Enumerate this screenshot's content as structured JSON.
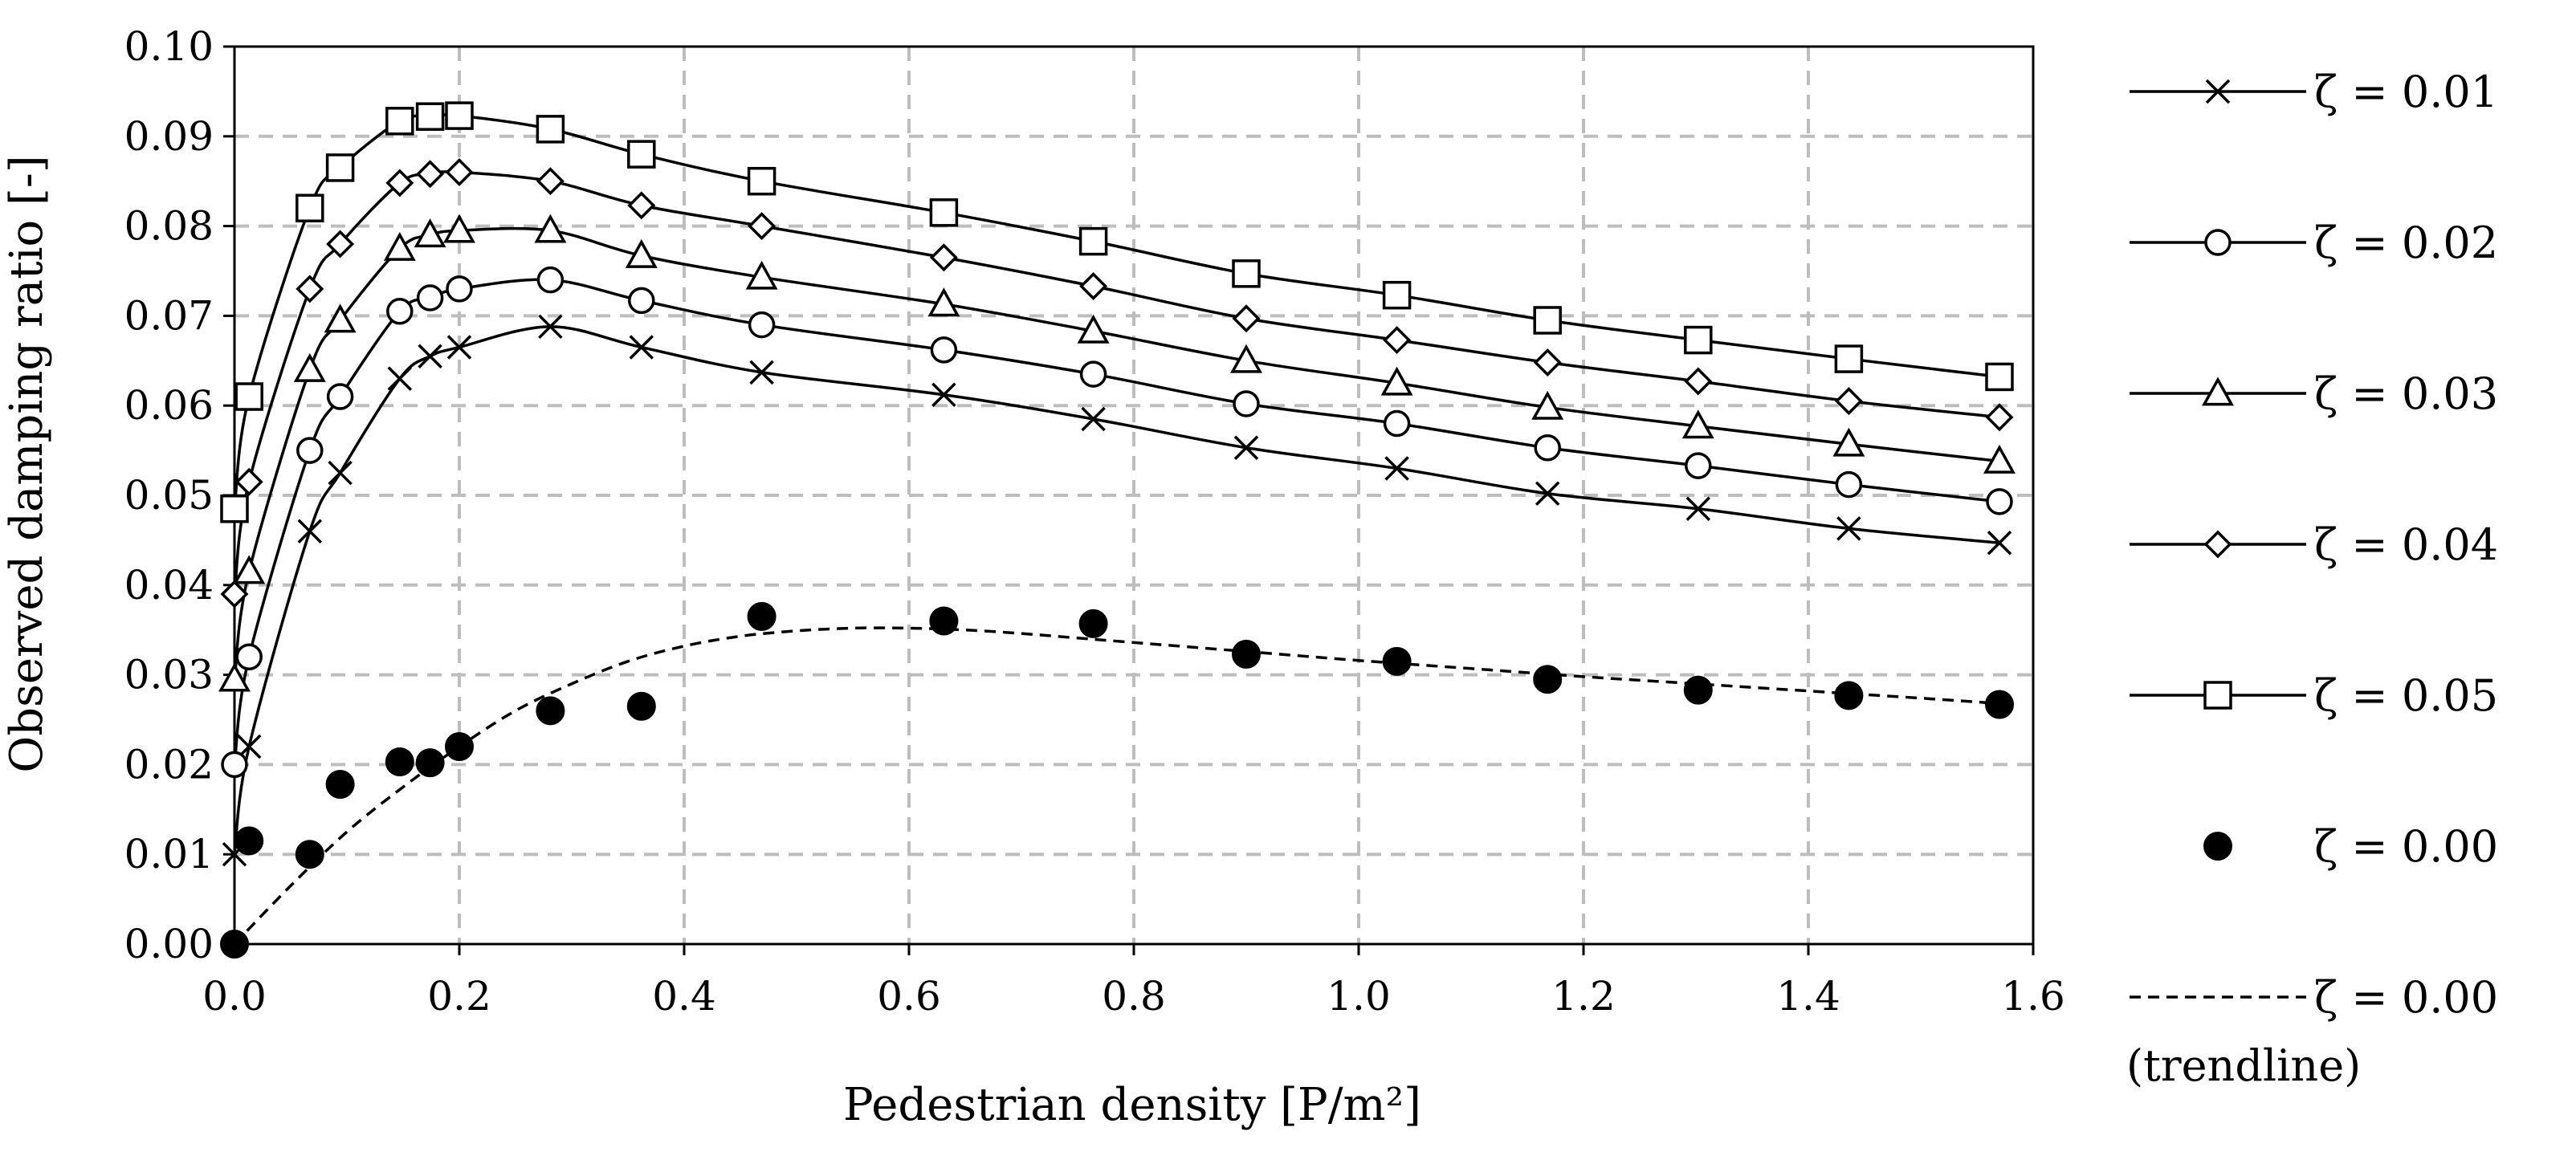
{
  "chart_data": {
    "type": "line",
    "title": "",
    "xlabel": "Pedestrian density [P/m²]",
    "ylabel": "Observed damping ratio [-]",
    "xlim": [
      0,
      1.6
    ],
    "ylim": [
      0,
      0.1
    ],
    "grid": true,
    "xticks": [
      0,
      0.2,
      0.4,
      0.6,
      0.8,
      1.0,
      1.2,
      1.4,
      1.6
    ],
    "xtick_labels": [
      "0.0",
      "0.2",
      "0.4",
      "0.6",
      "0.8",
      "1.0",
      "1.2",
      "1.4",
      "1.6"
    ],
    "yticks": [
      0,
      0.01,
      0.02,
      0.03,
      0.04,
      0.05,
      0.06,
      0.07,
      0.08,
      0.09,
      0.1
    ],
    "ytick_labels": [
      "0.00",
      "0.01",
      "0.02",
      "0.03",
      "0.04",
      "0.05",
      "0.06",
      "0.07",
      "0.08",
      "0.09",
      "0.10"
    ],
    "legend_position": "right",
    "x": [
      0,
      0.013,
      0.067,
      0.094,
      0.147,
      0.174,
      0.2,
      0.281,
      0.362,
      0.469,
      0.631,
      0.764,
      0.9,
      1.034,
      1.168,
      1.302,
      1.436,
      1.57
    ],
    "series": [
      {
        "name": "ζ = 0.01",
        "marker": "x",
        "line": "solid",
        "values": [
          0.01,
          0.022,
          0.046,
          0.0525,
          0.063,
          0.0655,
          0.0665,
          0.0688,
          0.0665,
          0.0637,
          0.0612,
          0.0585,
          0.0553,
          0.053,
          0.0502,
          0.0485,
          0.0463,
          0.0447
        ]
      },
      {
        "name": "ζ = 0.02",
        "marker": "circle",
        "line": "solid",
        "values": [
          0.02,
          0.032,
          0.055,
          0.061,
          0.0705,
          0.072,
          0.073,
          0.074,
          0.0717,
          0.069,
          0.0662,
          0.0635,
          0.0602,
          0.058,
          0.0553,
          0.0533,
          0.0512,
          0.0493
        ]
      },
      {
        "name": "ζ = 0.03",
        "marker": "triangle",
        "line": "solid",
        "values": [
          0.0295,
          0.0415,
          0.064,
          0.0695,
          0.0775,
          0.079,
          0.0795,
          0.0795,
          0.0767,
          0.0743,
          0.0713,
          0.0683,
          0.065,
          0.0625,
          0.0598,
          0.0577,
          0.0557,
          0.0538
        ]
      },
      {
        "name": "ζ = 0.04",
        "marker": "diamond",
        "line": "solid",
        "values": [
          0.039,
          0.0515,
          0.073,
          0.078,
          0.0848,
          0.0858,
          0.086,
          0.085,
          0.0823,
          0.08,
          0.0765,
          0.0733,
          0.0697,
          0.0673,
          0.0648,
          0.0627,
          0.0605,
          0.0587
        ]
      },
      {
        "name": "ζ = 0.05",
        "marker": "square",
        "line": "solid",
        "values": [
          0.0485,
          0.061,
          0.082,
          0.0865,
          0.0917,
          0.0922,
          0.0923,
          0.0908,
          0.088,
          0.085,
          0.0815,
          0.0783,
          0.0747,
          0.0723,
          0.0695,
          0.0673,
          0.0652,
          0.0632
        ]
      },
      {
        "name": "ζ = 0.00",
        "marker": "filled-circle",
        "line": "none",
        "values": [
          0.0,
          0.0115,
          0.01,
          0.0178,
          0.0203,
          0.0202,
          0.022,
          0.026,
          0.0265,
          0.0365,
          0.036,
          0.0357,
          0.0323,
          0.0315,
          0.0295,
          0.0283,
          0.0277,
          0.0267
        ]
      }
    ],
    "trendline": {
      "name": "ζ = 0.00",
      "sublabel": "(trendline)",
      "line": "dashed",
      "x": [
        0,
        0.05,
        0.1,
        0.15,
        0.2,
        0.25,
        0.3,
        0.35,
        0.4,
        0.45,
        0.5,
        0.55,
        0.6,
        0.65,
        0.7,
        0.75,
        0.8,
        0.9,
        1.0,
        1.1,
        1.2,
        1.3,
        1.4,
        1.5,
        1.57
      ],
      "values": [
        0.0,
        0.0065,
        0.0125,
        0.0175,
        0.022,
        0.026,
        0.029,
        0.0315,
        0.0332,
        0.0343,
        0.0349,
        0.0352,
        0.0352,
        0.035,
        0.0346,
        0.0341,
        0.0336,
        0.0326,
        0.0316,
        0.0307,
        0.0298,
        0.029,
        0.0282,
        0.0274,
        0.0268
      ]
    }
  }
}
